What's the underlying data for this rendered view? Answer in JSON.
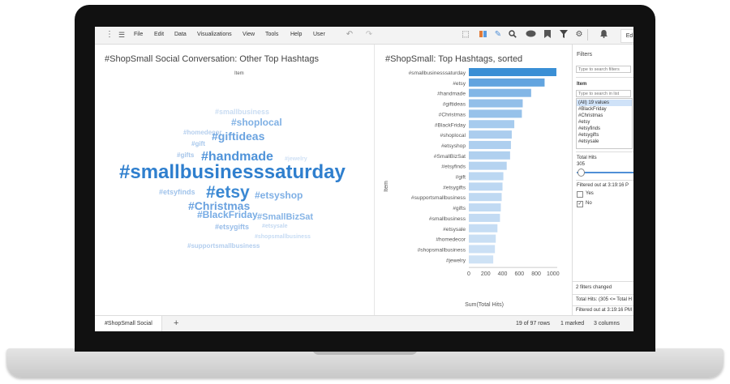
{
  "menu": {
    "items": [
      "File",
      "Edit",
      "Data",
      "Visualizations",
      "View",
      "Tools",
      "Help",
      "User"
    ],
    "edit_button_label": "Ed"
  },
  "toolbar_icons": [
    "undo-icon",
    "redo-icon",
    "select-icon",
    "sheet-icon",
    "brush-icon",
    "search-icon",
    "comment-icon",
    "bookmark-icon",
    "filter-icon",
    "gear-icon",
    "bell-icon"
  ],
  "left_panel": {
    "title": "#ShopSmall Social Conversation: Other Top Hashtags",
    "field_label": "Item",
    "words": [
      {
        "text": "#smallbusiness",
        "size": 9,
        "color": "#c9dcf2"
      },
      {
        "text": "#shoplocal",
        "size": 12,
        "color": "#7fb0e4"
      },
      {
        "text": "#homedecor",
        "size": 8,
        "color": "#b7d0ee"
      },
      {
        "text": "#gift",
        "size": 8,
        "color": "#a8c8ec"
      },
      {
        "text": "#giftideas",
        "size": 14,
        "color": "#6aa3e0"
      },
      {
        "text": "#gifts",
        "size": 8,
        "color": "#a7c6ea"
      },
      {
        "text": "#handmade",
        "size": 16,
        "color": "#4f93d9"
      },
      {
        "text": "#jewelry",
        "size": 7,
        "color": "#d0e1f5"
      },
      {
        "text": "#smallbusinesssaturday",
        "size": 24,
        "color": "#2f7fce"
      },
      {
        "text": "#etsyfinds",
        "size": 9,
        "color": "#a0c3eb"
      },
      {
        "text": "#etsy",
        "size": 21,
        "color": "#3a88d3"
      },
      {
        "text": "#etsyshop",
        "size": 12,
        "color": "#7eafe5"
      },
      {
        "text": "#Christmas",
        "size": 14,
        "color": "#69a1df"
      },
      {
        "text": "#SmallBizSat",
        "size": 11,
        "color": "#86b4e6"
      },
      {
        "text": "#etsysale",
        "size": 7,
        "color": "#c3d8f1"
      },
      {
        "text": "#BlackFriday",
        "size": 12,
        "color": "#76abe4"
      },
      {
        "text": "#etsygifts",
        "size": 9,
        "color": "#98bde9"
      },
      {
        "text": "#shopsmallbusiness",
        "size": 7,
        "color": "#c6dbf3"
      },
      {
        "text": "#supportsmallbusiness",
        "size": 8,
        "color": "#b3ceee"
      }
    ]
  },
  "right_panel": {
    "title": "#ShopSmall: Top Hashtags, sorted",
    "y_axis_label": "Item",
    "x_axis_label": "Sum(Total Hits)"
  },
  "chart_data": {
    "type": "bar",
    "orientation": "horizontal",
    "title": "#ShopSmall: Top Hashtags, sorted",
    "xlabel": "Sum(Total Hits)",
    "ylabel": "Item",
    "xlim": [
      0,
      1050
    ],
    "x_ticks": [
      0,
      200,
      400,
      600,
      800,
      1000
    ],
    "categories": [
      "#smallbusinesssaturday",
      "#etsy",
      "#handmade",
      "#giftideas",
      "#Christmas",
      "#BlackFriday",
      "#shoplocal",
      "#etsyshop",
      "#SmallBizSat",
      "#etsyfinds",
      "#gift",
      "#etsygifts",
      "#supportsmallbusiness",
      "#gifts",
      "#smallbusiness",
      "#etsysale",
      "#homedecor",
      "#shopsmallbusiness",
      "#jewelry"
    ],
    "values": [
      1040,
      900,
      740,
      640,
      630,
      540,
      510,
      500,
      490,
      450,
      410,
      400,
      390,
      380,
      370,
      340,
      320,
      310,
      290
    ],
    "colors": [
      "#3a8fd5",
      "#62a4df",
      "#82b6e6",
      "#93bfe9",
      "#97c2ea",
      "#a6cbee",
      "#abcdee",
      "#aecfef",
      "#b0d0ef",
      "#b5d3f0",
      "#bbd7f2",
      "#bcd7f2",
      "#bfd9f2",
      "#c1daf3",
      "#c3dbf3",
      "#c6ddf4",
      "#c9dff4",
      "#cbe0f5",
      "#cee2f5"
    ]
  },
  "filters": {
    "header": "Filters",
    "search_placeholder": "Type to search filters",
    "item_title": "Item",
    "item_search_placeholder": "Type to search in list",
    "item_values": [
      "(All) 19 values",
      "#BlackFriday",
      "#Christmas",
      "#etsy",
      "#etsyfinds",
      "#etsygifts",
      "#etsysale"
    ],
    "total_hits_title": "Total Hits",
    "total_hits_value": "305",
    "filtered_out_title": "Filtered out at 3:19:16 P",
    "filtered_out_options": [
      "Yes",
      "No"
    ],
    "filtered_out_checked": [
      false,
      true
    ],
    "changed_text": "2 filters changed",
    "total_hits_expr": "Total Hits: (305 <= Total H",
    "filtered_out_expr": "Filtered out at 3:19:16 PM"
  },
  "status": {
    "tab_label": "#ShopSmall Social",
    "add_tab": "+",
    "rows": "19 of 97 rows",
    "marked": "1 marked",
    "columns": "3 columns"
  }
}
